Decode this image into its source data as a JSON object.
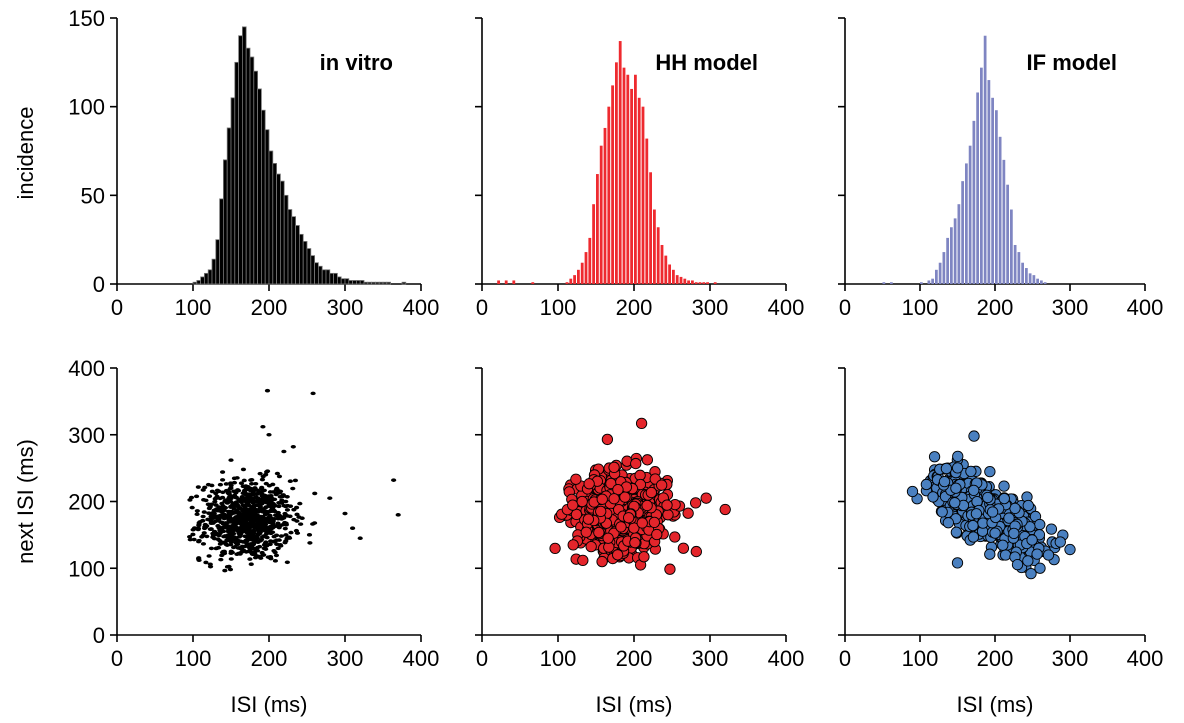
{
  "chart_data": [
    {
      "type": "bar",
      "panel": "in-vitro-hist",
      "title": "in vitro",
      "xlabel": "",
      "ylabel": "incidence",
      "xlim": [
        0,
        400
      ],
      "ylim": [
        0,
        150
      ],
      "xticks": [
        "0",
        "100",
        "200",
        "300",
        "400"
      ],
      "yticks": [
        "0",
        "50",
        "100",
        "150"
      ],
      "bin_width": 5,
      "bins_start": [
        100,
        105,
        110,
        115,
        120,
        125,
        130,
        135,
        140,
        145,
        150,
        155,
        160,
        165,
        170,
        175,
        180,
        185,
        190,
        195,
        200,
        205,
        210,
        215,
        220,
        225,
        230,
        235,
        240,
        245,
        250,
        255,
        260,
        265,
        270,
        275,
        280,
        285,
        290,
        295,
        300,
        305,
        310,
        315,
        320,
        325,
        330,
        335,
        340,
        345,
        350,
        355,
        360,
        365,
        370,
        375,
        380
      ],
      "values": [
        1,
        2,
        4,
        6,
        8,
        14,
        25,
        48,
        70,
        88,
        105,
        125,
        140,
        145,
        133,
        128,
        120,
        110,
        98,
        87,
        75,
        68,
        62,
        58,
        50,
        42,
        38,
        33,
        28,
        24,
        20,
        16,
        12,
        10,
        8,
        8,
        6,
        6,
        4,
        3,
        3,
        2,
        2,
        2,
        2,
        1,
        1,
        1,
        1,
        1,
        1,
        1,
        0,
        0,
        0,
        1,
        0
      ],
      "color": "#000000"
    },
    {
      "type": "bar",
      "panel": "hh-hist",
      "title": "HH model",
      "xlim": [
        0,
        400
      ],
      "ylim": [
        0,
        150
      ],
      "xticks": [
        "0",
        "100",
        "200",
        "300",
        "400"
      ],
      "bin_width": 5,
      "bins_start": [
        20,
        30,
        40,
        65,
        110,
        115,
        120,
        125,
        130,
        135,
        140,
        145,
        150,
        155,
        160,
        165,
        170,
        175,
        180,
        185,
        190,
        195,
        200,
        205,
        210,
        215,
        220,
        225,
        230,
        235,
        240,
        245,
        250,
        255,
        260,
        265,
        270,
        275,
        280,
        285,
        290,
        295,
        305
      ],
      "values": [
        2,
        2,
        2,
        1,
        1,
        3,
        5,
        8,
        12,
        18,
        26,
        45,
        62,
        78,
        88,
        100,
        112,
        125,
        137,
        122,
        118,
        110,
        118,
        105,
        100,
        82,
        63,
        42,
        32,
        22,
        16,
        11,
        8,
        5,
        4,
        3,
        2,
        2,
        1,
        1,
        1,
        1,
        1
      ],
      "color": "#ee2a2f"
    },
    {
      "type": "bar",
      "panel": "if-hist",
      "title": "IF model",
      "xlim": [
        0,
        400
      ],
      "ylim": [
        0,
        150
      ],
      "xticks": [
        "0",
        "100",
        "200",
        "300",
        "400"
      ],
      "bin_width": 5,
      "bins_start": [
        50,
        60,
        100,
        110,
        115,
        120,
        125,
        130,
        135,
        140,
        145,
        150,
        155,
        160,
        165,
        170,
        175,
        180,
        185,
        190,
        195,
        200,
        205,
        210,
        215,
        220,
        225,
        230,
        235,
        240,
        245,
        250,
        255,
        260,
        265
      ],
      "values": [
        1,
        1,
        1,
        2,
        3,
        8,
        12,
        18,
        26,
        32,
        37,
        45,
        58,
        68,
        78,
        92,
        108,
        122,
        140,
        115,
        105,
        98,
        83,
        70,
        56,
        42,
        22,
        18,
        12,
        9,
        6,
        5,
        3,
        2,
        1
      ],
      "color": "#7f85c2"
    },
    {
      "type": "scatter",
      "panel": "in-vitro-scatter",
      "xlabel": "ISI (ms)",
      "ylabel": "next ISI (ms)",
      "xlim": [
        0,
        400
      ],
      "ylim": [
        0,
        400
      ],
      "xticks": [
        "0",
        "100",
        "200",
        "300",
        "400"
      ],
      "yticks": [
        "0",
        "100",
        "200",
        "300",
        "400"
      ],
      "color": "#000000",
      "n_points": 900,
      "center": [
        170,
        172
      ],
      "spread": [
        30,
        30
      ],
      "outliers": [
        [
          198,
          366
        ],
        [
          258,
          362
        ],
        [
          364,
          232
        ],
        [
          370,
          180
        ],
        [
          192,
          312
        ],
        [
          200,
          300
        ],
        [
          108,
          112
        ],
        [
          310,
          160
        ],
        [
          300,
          182
        ],
        [
          320,
          145
        ],
        [
          280,
          205
        ],
        [
          150,
          262
        ],
        [
          232,
          282
        ]
      ]
    },
    {
      "type": "scatter",
      "panel": "hh-scatter",
      "xlabel": "ISI (ms)",
      "xlim": [
        0,
        400
      ],
      "ylim": [
        0,
        400
      ],
      "xticks": [
        "0",
        "100",
        "200",
        "300",
        "400"
      ],
      "color": "#e4252b",
      "n_points": 650,
      "center": [
        185,
        185
      ],
      "spread": [
        30,
        30
      ],
      "outliers": [
        [
          210,
          317
        ],
        [
          320,
          188
        ],
        [
          295,
          205
        ],
        [
          158,
          110
        ],
        [
          265,
          130
        ],
        [
          120,
          135
        ],
        [
          282,
          125
        ],
        [
          165,
          293
        ]
      ]
    },
    {
      "type": "scatter",
      "panel": "if-scatter",
      "xlabel": "ISI (ms)",
      "xlim": [
        0,
        400
      ],
      "ylim": [
        0,
        400
      ],
      "xticks": [
        "0",
        "100",
        "200",
        "300",
        "400"
      ],
      "color": "#4a80c0",
      "n_points": 650,
      "center": [
        190,
        185
      ],
      "spread": [
        35,
        30
      ],
      "correlation": -0.7,
      "outliers": [
        [
          172,
          298
        ],
        [
          90,
          215
        ],
        [
          300,
          128
        ],
        [
          248,
          92
        ],
        [
          150,
          108
        ],
        [
          260,
          100
        ]
      ]
    }
  ]
}
